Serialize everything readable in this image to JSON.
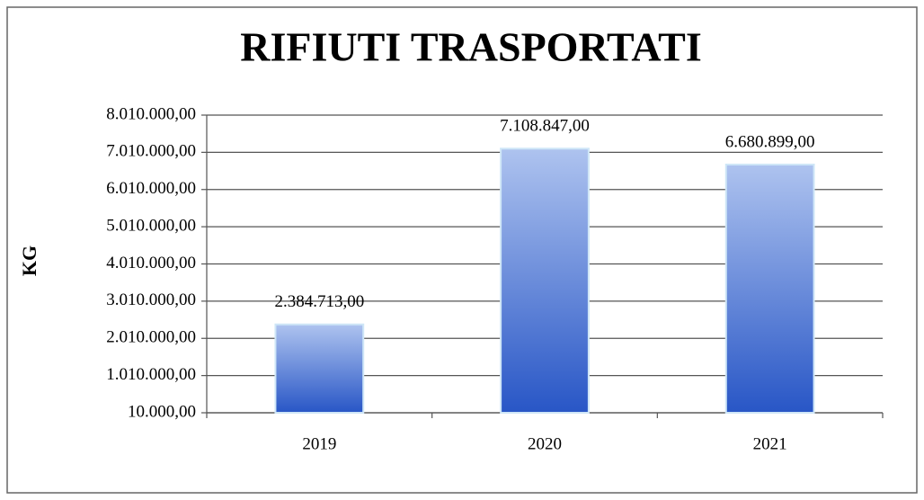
{
  "chart_data": {
    "type": "bar",
    "title": "RIFIUTI TRASPORTATI",
    "y_label": "KG",
    "categories": [
      "2019",
      "2020",
      "2021"
    ],
    "values": [
      2384713,
      7108847,
      6680899
    ],
    "value_labels": [
      "2.384.713,00",
      "7.108.847,00",
      "6.680.899,00"
    ],
    "color": "#3a6bd0",
    "ylim": [
      10000,
      8010000
    ],
    "yticks": [
      {
        "value": 10000,
        "label": "10.000,00"
      },
      {
        "value": 1010000,
        "label": "1.010.000,00"
      },
      {
        "value": 2010000,
        "label": "2.010.000,00"
      },
      {
        "value": 3010000,
        "label": "3.010.000,00"
      },
      {
        "value": 4010000,
        "label": "4.010.000,00"
      },
      {
        "value": 5010000,
        "label": "5.010.000,00"
      },
      {
        "value": 6010000,
        "label": "6.010.000,00"
      },
      {
        "value": 7010000,
        "label": "7.010.000,00"
      },
      {
        "value": 8010000,
        "label": "8.010.000,00"
      }
    ],
    "grid": true
  }
}
